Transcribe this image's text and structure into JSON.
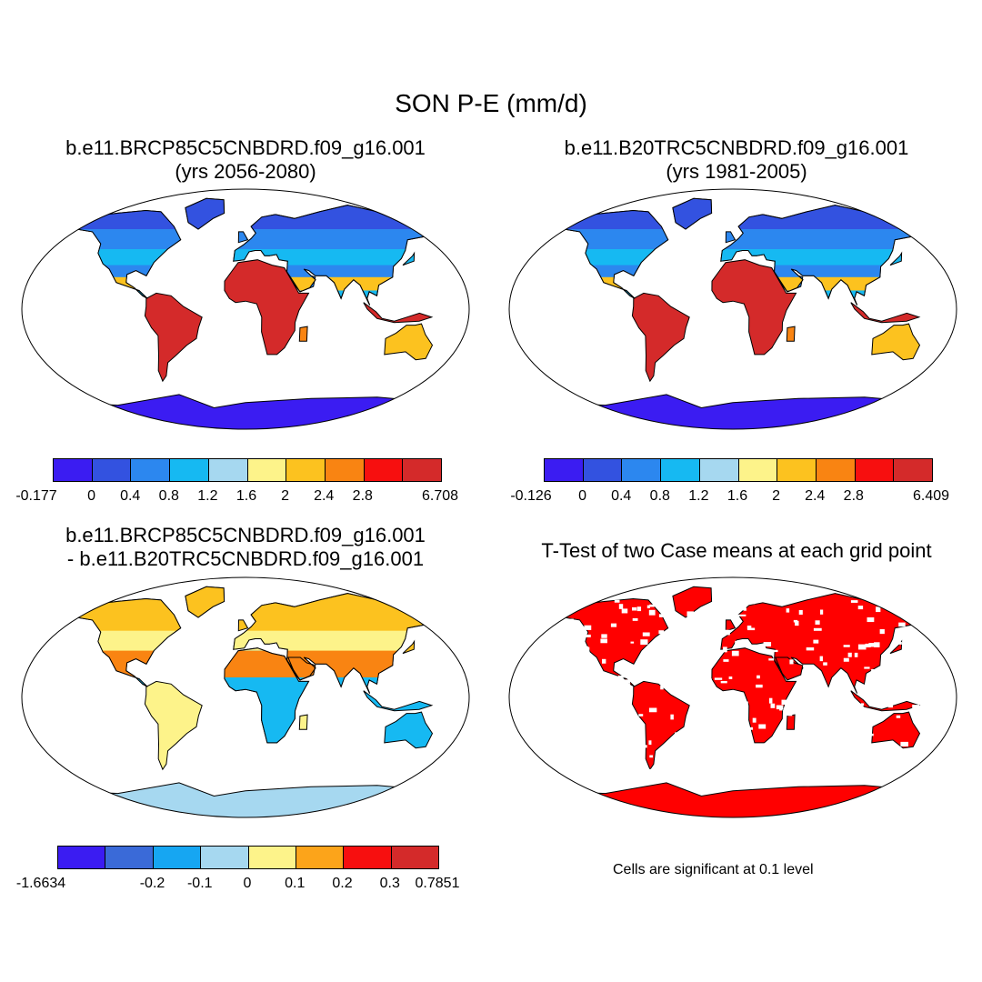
{
  "figure": {
    "title": "SON P-E (mm/d)"
  },
  "panels": [
    {
      "id": "top-left",
      "title_line1": "b.e11.BRCP85C5CNBDRD.f09_g16.001",
      "title_line2": "(yrs 2056-2080)",
      "colorbar": {
        "colors": [
          "#3b1cf2",
          "#3352e0",
          "#2c87ef",
          "#16b9f2",
          "#a6d8f0",
          "#fdf38a",
          "#fcc21f",
          "#f98412",
          "#f70f0f",
          "#d42a2a"
        ],
        "labels": [
          "-0.177",
          "0",
          "0.4",
          "0.8",
          "1.2",
          "1.6",
          "2",
          "2.4",
          "2.8",
          "6.708"
        ]
      }
    },
    {
      "id": "top-right",
      "title_line1": "b.e11.B20TRC5CNBDRD.f09_g16.001",
      "title_line2": "(yrs 1981-2005)",
      "colorbar": {
        "colors": [
          "#3b1cf2",
          "#3352e0",
          "#2c87ef",
          "#16b9f2",
          "#a6d8f0",
          "#fdf38a",
          "#fcc21f",
          "#f98412",
          "#f70f0f",
          "#d42a2a"
        ],
        "labels": [
          "-0.126",
          "0",
          "0.4",
          "0.8",
          "1.2",
          "1.6",
          "2",
          "2.4",
          "2.8",
          "6.409"
        ]
      }
    },
    {
      "id": "bottom-left",
      "title_line1": "b.e11.BRCP85C5CNBDRD.f09_g16.001",
      "title_line2": "- b.e11.B20TRC5CNBDRD.f09_g16.001",
      "colorbar": {
        "colors": [
          "#3b1cf2",
          "#3a6ad8",
          "#16a6f2",
          "#a6d8f0",
          "#fdf38a",
          "#fca41a",
          "#f70f0f",
          "#d42a2a"
        ],
        "labels": [
          "-1.6634",
          "-0.2",
          "-0.1",
          "0",
          "0.1",
          "0.2",
          "0.3",
          "0.7851"
        ]
      }
    },
    {
      "id": "bottom-right",
      "title_line1": "T-Test of two Case means at each grid point",
      "note": "Cells are significant at 0.1 level",
      "fill_color": "#ff0000"
    }
  ]
}
